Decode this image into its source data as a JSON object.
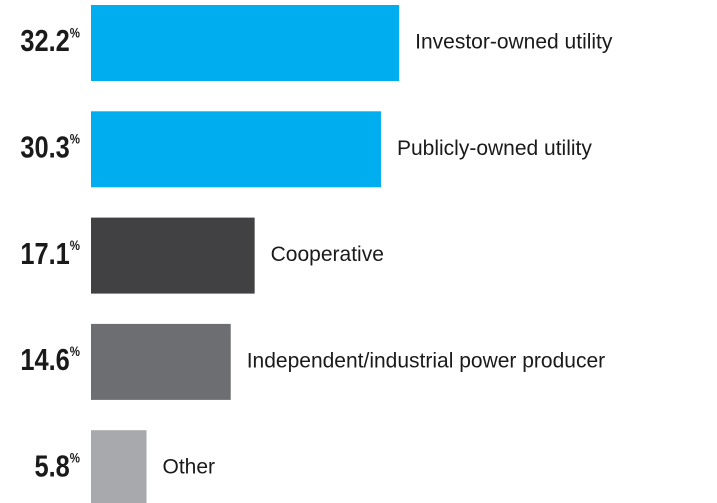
{
  "chart_data": {
    "type": "barh",
    "categories": [
      "Investor-owned utility",
      "Publicly-owned utility",
      "Cooperative",
      "Independent/industrial power producer",
      "Other"
    ],
    "values": [
      32.2,
      30.3,
      17.1,
      14.6,
      5.8
    ],
    "value_labels": [
      "32.2%",
      "30.3%",
      "17.1%",
      "14.6%",
      "5.8%"
    ],
    "colors": [
      "#00adee",
      "#00adee",
      "#414042",
      "#6d6e71",
      "#a7a9ac"
    ]
  }
}
